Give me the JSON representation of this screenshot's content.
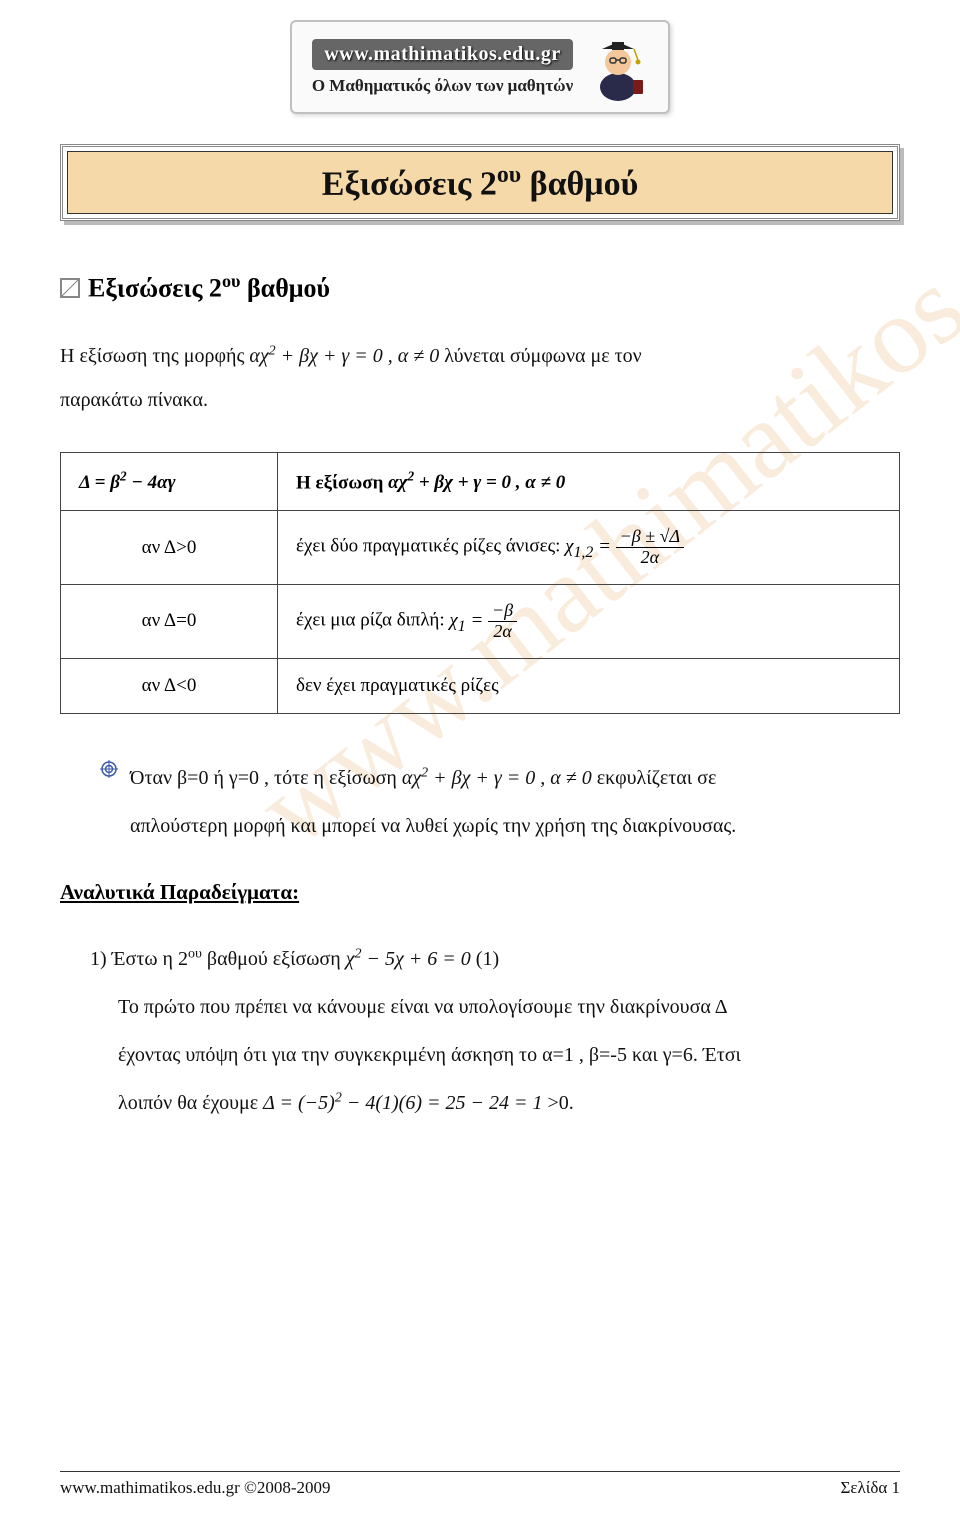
{
  "logo": {
    "url": "www.mathimatikos.edu.gr",
    "sub": "Ο Μαθηματικός όλων των μαθητών"
  },
  "title": "Εξισώσεις 2<sup>ου</sup> βαθμού",
  "section_heading": "Εξισώσεις 2<sup>ου</sup> βαθμού",
  "intro_line1_a": "Η εξίσωση της μορφής ",
  "intro_eq": "αχ<sup>2</sup> + βχ + γ = 0 , α ≠ 0",
  "intro_line1_b": " λύνεται σύμφωνα με τον",
  "intro_line2": "παρακάτω πίνακα.",
  "table": {
    "h1": "Δ = β<sup>2</sup> − 4αγ",
    "h2_a": "Η εξίσωση ",
    "h2_eq": "αχ<sup>2</sup> + βχ + γ = 0 , α ≠ 0",
    "rows": [
      {
        "cond": "αν Δ>0",
        "desc_pre": "έχει δύο πραγματικές ρίζες άνισες: ",
        "chi": "χ<sub>1,2</sub> = ",
        "num": "−β ± √Δ",
        "den": "2α"
      },
      {
        "cond": "αν Δ=0",
        "desc_pre": "έχει μια ρίζα διπλή: ",
        "chi": "χ<sub>1</sub> = ",
        "num": "−β",
        "den": "2α"
      },
      {
        "cond": "αν Δ<0",
        "desc_pre": "δεν έχει πραγματικές ρίζες",
        "chi": "",
        "num": "",
        "den": ""
      }
    ]
  },
  "bullet": {
    "line1_a": "Όταν β=0 ή γ=0 , τότε η εξίσωση ",
    "line1_eq": "αχ<sup>2</sup> + βχ + γ = 0 , α ≠ 0",
    "line1_b": " εκφυλίζεται σε",
    "line2": "απλούστερη μορφή και μπορεί να λυθεί χωρίς την χρήση της διακρίνουσας."
  },
  "examples_heading": "Αναλυτικά Παραδείγματα:",
  "ex1": {
    "line1_a": "1)  Έστω η 2<sup>ου</sup> βαθμού εξίσωση  ",
    "line1_eq": "χ<sup>2</sup> − 5χ + 6 = 0",
    "line1_b": " (1)",
    "line2": "Το πρώτο που πρέπει να κάνουμε είναι να υπολογίσουμε την διακρίνουσα Δ",
    "line3": "έχοντας υπόψη ότι για την συγκεκριμένη άσκηση το α=1 , β=-5 και γ=6. Έτσι",
    "line4_a": "λοιπόν θα έχουμε ",
    "line4_eq": "Δ = (−5)<sup>2</sup> − 4(1)(6) = 25 − 24 = 1",
    "line4_b": ">0."
  },
  "footer": {
    "left": "www.mathimatikos.edu.gr ©2008-2009",
    "right": "Σελίδα 1"
  },
  "watermark": "www.mathimatikos.edu.gr",
  "colors": {
    "title_bg": "#f5d9a8",
    "border": "#444444",
    "text": "#111111",
    "watermark": "rgba(230,180,120,0.25)"
  }
}
